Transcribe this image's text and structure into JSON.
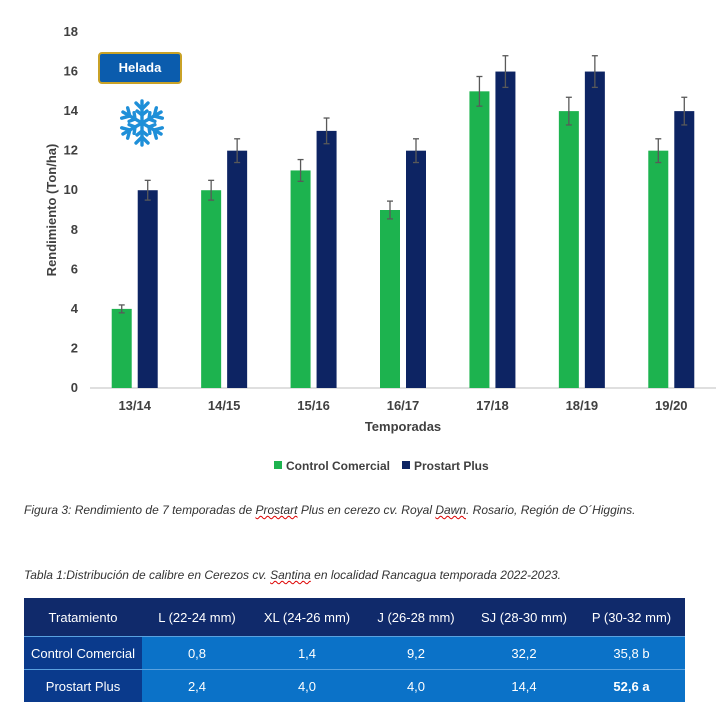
{
  "chart_data": {
    "type": "bar",
    "categories": [
      "13/14",
      "14/15",
      "15/16",
      "16/17",
      "17/18",
      "18/19",
      "19/20"
    ],
    "series": [
      {
        "name": "Control Comercial",
        "values": [
          4,
          10,
          11,
          9,
          15,
          14,
          12
        ],
        "error": [
          0.2,
          0.5,
          0.55,
          0.45,
          0.75,
          0.7,
          0.6
        ],
        "color": "#1db34f"
      },
      {
        "name": "Prostart Plus",
        "values": [
          10,
          12,
          13,
          12,
          16,
          16,
          14
        ],
        "error": [
          0.5,
          0.6,
          0.65,
          0.6,
          0.8,
          0.8,
          0.7
        ],
        "color": "#0d2463"
      }
    ],
    "xlabel": "Temporadas",
    "ylabel": "Rendimiento (Ton/ha)",
    "ylim": [
      0,
      18
    ],
    "yticks": [
      0,
      2,
      4,
      6,
      8,
      10,
      12,
      14,
      16,
      18
    ],
    "grid": false,
    "legend": "bottom",
    "annotation": "Helada",
    "annotation_icon": "snowflake-icon"
  },
  "figure_caption": {
    "pre": "Figura 3: Rendimiento de 7 temporadas de ",
    "word1": "Prostart",
    "mid": " Plus en cerezo cv. Royal ",
    "word2": "Dawn",
    "post": ". Rosario, Región de O´Higgins."
  },
  "table_caption": {
    "pre": "Tabla 1:Distribución de calibre en Cerezos cv. ",
    "word1": "Santina",
    "post": " en localidad Rancagua temporada 2022-2023."
  },
  "table": {
    "headers": [
      "Tratamiento",
      "L (22-24 mm)",
      "XL (24-26 mm)",
      "J (26-28 mm)",
      "SJ (28-30 mm)",
      "P (30-32 mm)"
    ],
    "rows": [
      [
        "Control Comercial",
        "0,8",
        "1,4",
        "9,2",
        "32,2",
        "35,8 b"
      ],
      [
        "Prostart Plus",
        "2,4",
        "4,0",
        "4,0",
        "14,4",
        "52,6 a"
      ]
    ]
  }
}
